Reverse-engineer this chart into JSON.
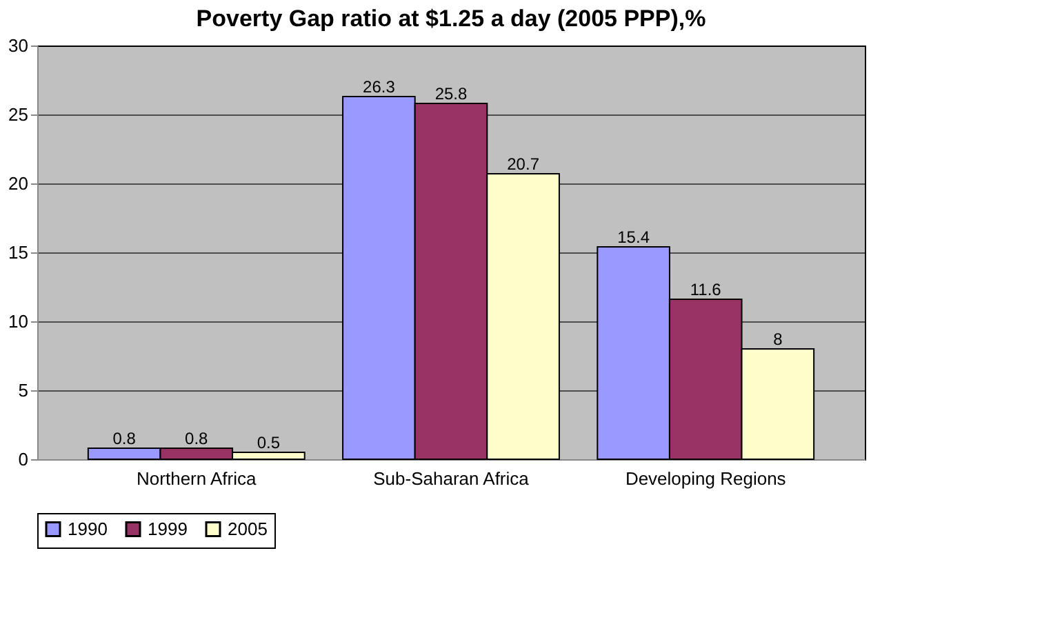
{
  "chart_data": {
    "type": "bar",
    "title": "Poverty Gap ratio at $1.25 a day (2005 PPP),%",
    "categories": [
      "Northern Africa",
      "Sub-Saharan Africa",
      "Developing Regions"
    ],
    "series": [
      {
        "name": "1990",
        "color": "#9999ff",
        "values": [
          0.8,
          26.3,
          15.4
        ]
      },
      {
        "name": "1999",
        "color": "#993366",
        "values": [
          0.8,
          25.8,
          11.6
        ]
      },
      {
        "name": "2005",
        "color": "#ffffcc",
        "values": [
          0.5,
          20.7,
          8
        ]
      }
    ],
    "ylim": [
      0,
      30
    ],
    "yticks": [
      0,
      5,
      10,
      15,
      20,
      25,
      30
    ],
    "grid": "y",
    "legend": "bottom",
    "data_labels": true
  }
}
